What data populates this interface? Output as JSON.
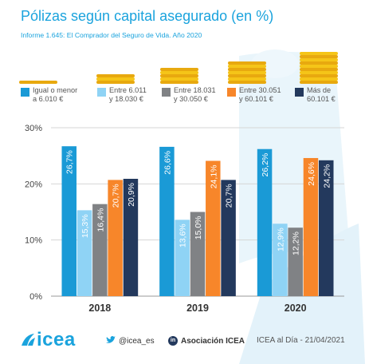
{
  "header": {
    "title": "Pólizas según capital asegurado (en %)",
    "subtitle": "Informe 1.645: El Comprador del Seguro de Vida. Año 2020"
  },
  "legend": [
    {
      "line1": "Igual o menor",
      "line2": "a 6.010 €",
      "color": "#1a9ad6"
    },
    {
      "line1": "Entre 6.011",
      "line2": "y 18.030 €",
      "color": "#8fd3f5"
    },
    {
      "line1": "Entre 18.031",
      "line2": "y 30.050 €",
      "color": "#808285"
    },
    {
      "line1": "Entre 30.051",
      "line2": "y 60.101 €",
      "color": "#f7862a"
    },
    {
      "line1": "Más de",
      "line2": "60.101 €",
      "color": "#23395d"
    }
  ],
  "chart_data": {
    "type": "bar",
    "categories": [
      "2018",
      "2019",
      "2020"
    ],
    "ylim": [
      0,
      30
    ],
    "yticks": [
      "0%",
      "10%",
      "20%",
      "30%"
    ],
    "grid": true,
    "series": [
      {
        "name": "Igual o menor a 6.010 €",
        "values": [
          26.7,
          26.6,
          26.2
        ],
        "labels": [
          "26,7%",
          "26,6%",
          "26,2%"
        ],
        "color": "#1a9ad6"
      },
      {
        "name": "Entre 6.011 y 18.030 €",
        "values": [
          15.3,
          13.6,
          12.9
        ],
        "labels": [
          "15,3%",
          "13,6%",
          "12,9%"
        ],
        "color": "#8fd3f5"
      },
      {
        "name": "Entre 18.031 y 30.050 €",
        "values": [
          16.4,
          15.0,
          12.2
        ],
        "labels": [
          "16,4%",
          "15,0%",
          "12,2%"
        ],
        "color": "#808285"
      },
      {
        "name": "Entre 30.051 y 60.101 €",
        "values": [
          20.7,
          24.1,
          24.6
        ],
        "labels": [
          "20,7%",
          "24,1%",
          "24,6%"
        ],
        "color": "#f7862a"
      },
      {
        "name": "Más de 60.101 €",
        "values": [
          20.9,
          20.7,
          24.2
        ],
        "labels": [
          "20,9%",
          "20,7%",
          "24,2%"
        ],
        "color": "#23395d"
      }
    ]
  },
  "footer": {
    "logo": "icea",
    "twitter": "@icea_es",
    "linkedin": "Asociación ICEA",
    "linkedin_icon": "in",
    "source": "ICEA al Día - 21/04/2021"
  }
}
